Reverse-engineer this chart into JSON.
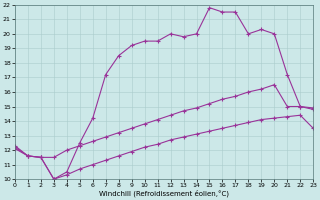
{
  "xlabel": "Windchill (Refroidissement éolien,°C)",
  "bg_color": "#cce8e8",
  "line_color": "#993399",
  "xlim": [
    0,
    23
  ],
  "ylim": [
    10,
    22
  ],
  "xticks": [
    0,
    1,
    2,
    3,
    4,
    5,
    6,
    7,
    8,
    9,
    10,
    11,
    12,
    13,
    14,
    15,
    16,
    17,
    18,
    19,
    20,
    21,
    22,
    23
  ],
  "yticks": [
    10,
    11,
    12,
    13,
    14,
    15,
    16,
    17,
    18,
    19,
    20,
    21,
    22
  ],
  "line1_x": [
    0,
    1,
    2,
    3,
    4,
    5,
    6,
    7,
    8,
    9,
    10,
    11,
    12,
    13,
    14,
    15,
    16,
    17,
    18,
    19,
    20,
    21,
    22,
    23
  ],
  "line1_y": [
    12.3,
    11.6,
    11.5,
    10.0,
    10.5,
    12.5,
    14.2,
    17.2,
    18.5,
    19.2,
    19.5,
    19.5,
    20.0,
    19.8,
    20.0,
    21.8,
    21.5,
    21.5,
    20.0,
    20.3,
    20.0,
    17.2,
    15.0,
    14.8
  ],
  "line2_x": [
    0,
    1,
    2,
    3,
    4,
    5,
    6,
    7,
    8,
    9,
    10,
    11,
    12,
    13,
    14,
    15,
    16,
    17,
    18,
    19,
    20,
    21,
    22,
    23
  ],
  "line2_y": [
    12.2,
    11.6,
    11.5,
    11.5,
    12.0,
    12.3,
    12.6,
    12.9,
    13.2,
    13.5,
    13.8,
    14.1,
    14.4,
    14.7,
    14.9,
    15.2,
    15.5,
    15.7,
    16.0,
    16.2,
    16.5,
    15.0,
    15.0,
    14.9
  ],
  "line3_x": [
    0,
    1,
    2,
    3,
    4,
    5,
    6,
    7,
    8,
    9,
    10,
    11,
    12,
    13,
    14,
    15,
    16,
    17,
    18,
    19,
    20,
    21,
    22,
    23
  ],
  "line3_y": [
    12.1,
    11.6,
    11.5,
    10.0,
    10.3,
    10.7,
    11.0,
    11.3,
    11.6,
    11.9,
    12.2,
    12.4,
    12.7,
    12.9,
    13.1,
    13.3,
    13.5,
    13.7,
    13.9,
    14.1,
    14.2,
    14.3,
    14.4,
    13.5
  ]
}
